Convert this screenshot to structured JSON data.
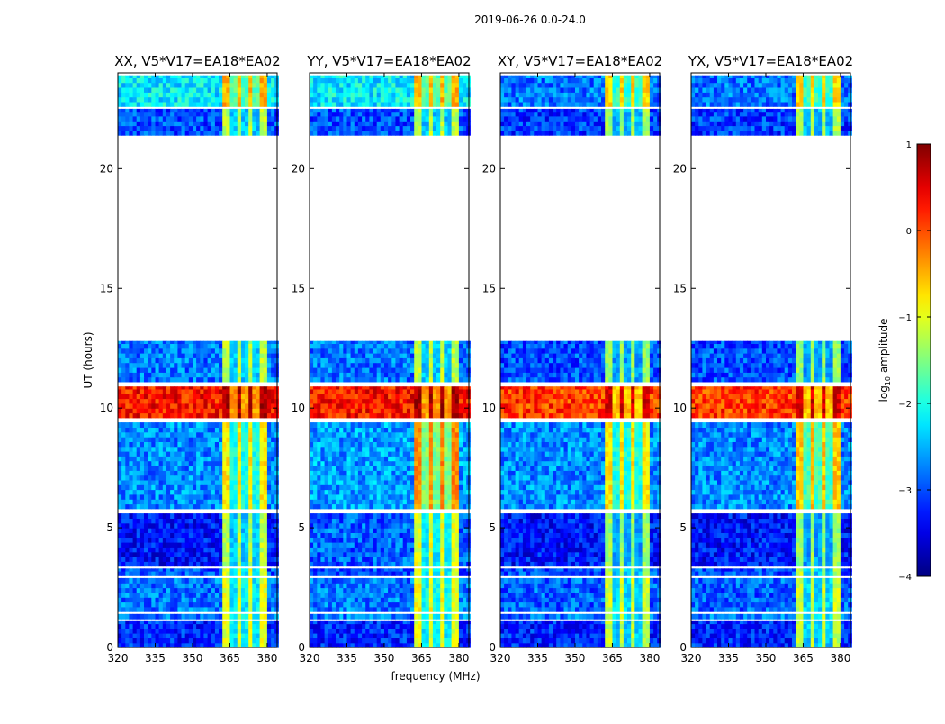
{
  "chart_data": {
    "type": "heatmap",
    "title": "2019-06-26 0.0-24.0",
    "xlabel": "frequency (MHz)",
    "ylabel": "UT (hours)",
    "xlim": [
      320,
      384
    ],
    "ylim": [
      0,
      24
    ],
    "xticks": [
      320,
      335,
      350,
      365,
      380
    ],
    "xtick_labels": [
      "320",
      "335",
      "350",
      "365",
      "380"
    ],
    "yticks": [
      0,
      5,
      10,
      15,
      20
    ],
    "ytick_labels": [
      "0",
      "5",
      "10",
      "15",
      "20"
    ],
    "panels": [
      {
        "title": "XX, V5*V17=EA18*EA02"
      },
      {
        "title": "YY, V5*V17=EA18*EA02"
      },
      {
        "title": "XY, V5*V17=EA18*EA02"
      },
      {
        "title": "YX, V5*V17=EA18*EA02"
      }
    ],
    "band_MHz": [
      362,
      380
    ],
    "band_gaps_MHz": [
      366.5,
      371,
      375.5
    ],
    "segments": [
      {
        "hours": [
          0.0,
          1.1
        ],
        "bg": [
          -3.2,
          -3.2,
          -3.2,
          -3.2
        ],
        "band": [
          -1.0,
          -1.0,
          -1.2,
          -1.2
        ]
      },
      {
        "hours": [
          1.2,
          1.4
        ],
        "bg": [
          -2.8,
          -2.8,
          -2.8,
          -2.8
        ],
        "band": [
          -1.0,
          -1.0,
          -1.1,
          -1.1
        ]
      },
      {
        "hours": [
          1.5,
          2.9
        ],
        "bg": [
          -2.8,
          -2.8,
          -2.9,
          -2.9
        ],
        "band": [
          -1.0,
          -0.9,
          -1.1,
          -1.1
        ]
      },
      {
        "hours": [
          3.0,
          3.3
        ],
        "bg": [
          -3.0,
          -3.0,
          -3.0,
          -3.0
        ],
        "band": [
          -1.0,
          -1.0,
          -1.2,
          -1.2
        ]
      },
      {
        "hours": [
          3.4,
          5.6
        ],
        "bg": [
          -3.3,
          -2.9,
          -3.3,
          -3.3
        ],
        "band": [
          -1.2,
          -1.0,
          -1.4,
          -1.4
        ]
      },
      {
        "hours": [
          5.8,
          9.4
        ],
        "bg": [
          -2.7,
          -2.6,
          -2.7,
          -2.7
        ],
        "band": [
          -0.8,
          -0.3,
          -0.8,
          -0.6
        ]
      },
      {
        "hours": [
          9.6,
          10.9
        ],
        "bg": [
          0.3,
          0.3,
          0.1,
          0.1
        ],
        "band": [
          0.8,
          0.8,
          0.6,
          0.6
        ]
      },
      {
        "hours": [
          11.1,
          12.8
        ],
        "bg": [
          -2.8,
          -2.8,
          -3.0,
          -3.0
        ],
        "band": [
          -1.2,
          -1.2,
          -1.4,
          -1.4
        ]
      },
      {
        "hours": [
          21.4,
          22.5
        ],
        "bg": [
          -3.0,
          -3.0,
          -3.1,
          -3.1
        ],
        "band": [
          -1.2,
          -1.2,
          -1.3,
          -1.3
        ]
      },
      {
        "hours": [
          22.6,
          23.9
        ],
        "bg": [
          -2.2,
          -2.2,
          -2.8,
          -2.8
        ],
        "band": [
          -0.5,
          -0.5,
          -0.7,
          -0.7
        ]
      }
    ],
    "colorbar": {
      "label_prefix": "log",
      "label_sub": "10",
      "label_suffix": " amplitude",
      "range": [
        -4,
        1
      ],
      "colormap": "jet",
      "ticks": [
        -4,
        -3,
        -2,
        -1,
        0,
        1
      ],
      "tick_labels": [
        "−4",
        "−3",
        "−2",
        "−1",
        "0",
        "1"
      ]
    }
  }
}
